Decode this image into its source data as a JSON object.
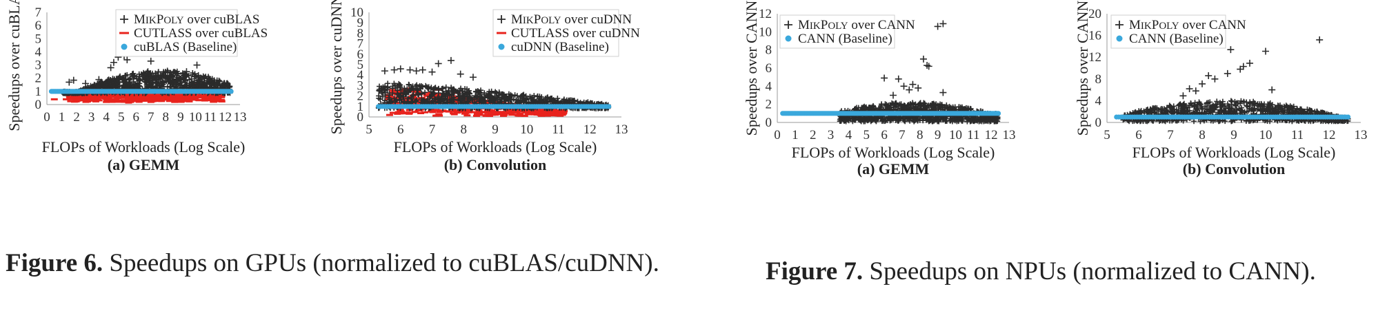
{
  "chart_data": [
    {
      "type": "scatter",
      "xlabel": "FLOPs of Workloads (Log Scale)",
      "ylabel": "Speedups over cuBLAS",
      "subcaption": "(a) GEMM",
      "xlim": [
        0,
        13
      ],
      "ylim": [
        0,
        7
      ],
      "xticks": [
        0,
        1,
        2,
        3,
        4,
        5,
        6,
        7,
        8,
        9,
        10,
        11,
        12,
        13
      ],
      "yticks": [
        0,
        1,
        2,
        3,
        4,
        5,
        6,
        7
      ],
      "grid": false,
      "legend_position": "top-right",
      "series": [
        {
          "name": "MikPoly over cuBLAS",
          "name_prefix": "M",
          "name_sc": "IK",
          "name_mid": "P",
          "name_sc2": "OLY",
          "name_suffix": " over cuBLAS",
          "marker": "plus",
          "color": "#2b2b2b",
          "band": {
            "x": [
              1.0,
              12.4
            ],
            "low": 0.85,
            "high_peak": 2.6,
            "peak_x": 7.8
          },
          "points": [
            [
              1.5,
              1.7
            ],
            [
              1.8,
              1.85
            ],
            [
              2.6,
              1.6
            ],
            [
              3.5,
              1.9
            ],
            [
              4.3,
              2.8
            ],
            [
              4.5,
              3.2
            ],
            [
              4.8,
              3.6
            ],
            [
              5.0,
              3.9
            ],
            [
              5.2,
              3.7
            ],
            [
              5.4,
              3.4
            ],
            [
              5.0,
              4.7
            ],
            [
              7.0,
              3.3
            ],
            [
              8.9,
              4.1
            ],
            [
              9.2,
              4.1
            ],
            [
              9.4,
              2.5
            ],
            [
              10.1,
              3.0
            ],
            [
              10.2,
              2.2
            ],
            [
              11.0,
              1.8
            ],
            [
              11.5,
              1.5
            ],
            [
              12.2,
              1.4
            ]
          ]
        },
        {
          "name": "CUTLASS over cuBLAS",
          "marker": "dash",
          "color": "#e8231d",
          "band": {
            "x": [
              1.5,
              11.8
            ],
            "low": 0.2,
            "high": 1.0
          },
          "points": [
            [
              0.5,
              0.4
            ],
            [
              1.3,
              0.4
            ],
            [
              2.0,
              0.35
            ],
            [
              3.0,
              0.3
            ],
            [
              4.0,
              0.2
            ],
            [
              5.5,
              0.15
            ],
            [
              7.0,
              0.2
            ],
            [
              8.6,
              0.2
            ],
            [
              9.7,
              1.0
            ],
            [
              10.5,
              1.3
            ],
            [
              10.0,
              1.6
            ],
            [
              11.5,
              0.4
            ]
          ]
        },
        {
          "name": "cuBLAS (Baseline)",
          "marker": "dot",
          "color": "#3aa8dc",
          "points_line": {
            "x": [
              0.3,
              12.4
            ],
            "y": 1.0
          }
        }
      ]
    },
    {
      "type": "scatter",
      "xlabel": "FLOPs of Workloads (Log Scale)",
      "ylabel": "Speedups over cuDNN",
      "subcaption": "(b) Convolution",
      "xlim": [
        5,
        13
      ],
      "ylim": [
        0,
        10
      ],
      "xticks": [
        5,
        6,
        7,
        8,
        9,
        10,
        11,
        12,
        13
      ],
      "yticks": [
        0,
        1,
        2,
        3,
        4,
        5,
        6,
        7,
        8,
        9,
        10
      ],
      "grid": false,
      "legend_position": "top-right",
      "series": [
        {
          "name": "MikPoly over cuDNN",
          "name_prefix": "M",
          "name_sc": "IK",
          "name_mid": "P",
          "name_sc2": "OLY",
          "name_suffix": " over cuDNN",
          "marker": "plus",
          "color": "#2b2b2b",
          "band": {
            "x": [
              5.3,
              12.6
            ],
            "low": 0.8,
            "high_start": 3.3,
            "high_end": 1.2
          },
          "points": [
            [
              5.5,
              4.4
            ],
            [
              5.8,
              4.5
            ],
            [
              6.0,
              4.6
            ],
            [
              6.3,
              4.5
            ],
            [
              6.5,
              4.4
            ],
            [
              6.7,
              4.5
            ],
            [
              7.0,
              4.3
            ],
            [
              7.2,
              5.1
            ],
            [
              7.6,
              5.4
            ],
            [
              7.9,
              4.1
            ],
            [
              8.3,
              3.8
            ]
          ]
        },
        {
          "name": "CUTLASS over cuDNN",
          "marker": "dash",
          "color": "#e8231d",
          "band": {
            "x": [
              5.6,
              11.2
            ],
            "low": 0.1,
            "high_start": 2.9,
            "high_end": 0.6
          },
          "points": [
            [
              6.2,
              2.7
            ],
            [
              7.2,
              2.6
            ],
            [
              7.8,
              2.3
            ]
          ]
        },
        {
          "name": "cuDNN (Baseline)",
          "marker": "dot",
          "color": "#3aa8dc",
          "points_line": {
            "x": [
              5.3,
              12.6
            ],
            "y": 1.0
          }
        }
      ]
    },
    {
      "type": "scatter",
      "xlabel": "FLOPs of Workloads (Log Scale)",
      "ylabel": "Speedups over CANN",
      "subcaption": "(a) GEMM",
      "xlim": [
        0,
        13
      ],
      "ylim": [
        0,
        12
      ],
      "xticks": [
        0,
        1,
        2,
        3,
        4,
        5,
        6,
        7,
        8,
        9,
        10,
        11,
        12,
        13
      ],
      "yticks": [
        0,
        2,
        4,
        6,
        8,
        10,
        12
      ],
      "grid": false,
      "legend_position": "top-left",
      "series": [
        {
          "name": "MikPoly over CANN",
          "name_prefix": "M",
          "name_sc": "IK",
          "name_mid": "P",
          "name_sc2": "OLY",
          "name_suffix": " over CANN",
          "marker": "plus",
          "color": "#2b2b2b",
          "band": {
            "x": [
              3.5,
              12.4
            ],
            "low": 0.1,
            "high_peak": 2.2,
            "peak_x": 7.5
          },
          "points": [
            [
              3.6,
              1.2
            ],
            [
              6.0,
              4.9
            ],
            [
              6.8,
              4.8
            ],
            [
              7.1,
              4.0
            ],
            [
              7.4,
              3.6
            ],
            [
              7.6,
              4.2
            ],
            [
              7.9,
              3.8
            ],
            [
              8.2,
              7.0
            ],
            [
              8.4,
              6.3
            ],
            [
              8.5,
              6.2
            ],
            [
              9.0,
              10.6
            ],
            [
              9.3,
              10.9
            ],
            [
              9.3,
              3.3
            ],
            [
              6.5,
              3.0
            ]
          ]
        },
        {
          "name": "CANN (Baseline)",
          "marker": "dot",
          "color": "#3aa8dc",
          "points_line": {
            "x": [
              0.3,
              12.4
            ],
            "y": 1.0
          }
        }
      ]
    },
    {
      "type": "scatter",
      "xlabel": "FLOPs of Workloads (Log Scale)",
      "ylabel": "Speedups over CANN",
      "subcaption": "(b) Convolution",
      "xlim": [
        5,
        13
      ],
      "ylim": [
        0,
        20
      ],
      "xticks": [
        5,
        6,
        7,
        8,
        9,
        10,
        11,
        12,
        13
      ],
      "yticks": [
        0,
        4,
        8,
        12,
        16,
        20
      ],
      "grid": false,
      "legend_position": "top-left",
      "series": [
        {
          "name": "MikPoly over CANN",
          "name_prefix": "M",
          "name_sc": "IK",
          "name_mid": "P",
          "name_sc2": "OLY",
          "name_suffix": " over CANN",
          "marker": "plus",
          "color": "#2b2b2b",
          "band": {
            "x": [
              5.5,
              12.6
            ],
            "low": 0.2,
            "high_peak": 4.0,
            "peak_x": 8.8
          },
          "points": [
            [
              7.6,
              6.2
            ],
            [
              7.8,
              5.8
            ],
            [
              8.0,
              7.1
            ],
            [
              8.2,
              8.6
            ],
            [
              8.4,
              8.0
            ],
            [
              8.8,
              9.0
            ],
            [
              8.9,
              13.4
            ],
            [
              9.3,
              10.3
            ],
            [
              9.5,
              10.9
            ],
            [
              9.2,
              9.8
            ],
            [
              10.0,
              13.1
            ],
            [
              10.2,
              6.0
            ],
            [
              11.7,
              15.2
            ],
            [
              7.4,
              4.9
            ]
          ]
        },
        {
          "name": "CANN (Baseline)",
          "marker": "dot",
          "color": "#3aa8dc",
          "points_line": {
            "x": [
              5.3,
              12.6
            ],
            "y": 1.0
          }
        }
      ]
    }
  ],
  "captions": {
    "fig6_label": "Figure 6.",
    "fig6_text": " Speedups on GPUs (normalized to cuBLAS/cuDNN).",
    "fig7_label": "Figure 7.",
    "fig7_text": " Speedups on NPUs (normalized to CANN)."
  },
  "colors": {
    "mikpoly": "#2b2b2b",
    "cutlass": "#e8231d",
    "baseline": "#3aa8dc"
  }
}
